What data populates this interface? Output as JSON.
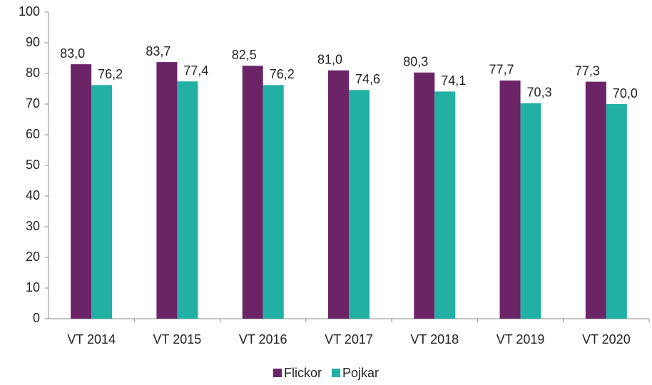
{
  "chart_data": {
    "type": "bar",
    "categories": [
      "VT 2014",
      "VT 2015",
      "VT 2016",
      "VT 2017",
      "VT 2018",
      "VT 2019",
      "VT 2020"
    ],
    "series": [
      {
        "name": "Flickor",
        "color": "#6b2567",
        "values": [
          83.0,
          83.7,
          82.5,
          81.0,
          80.3,
          77.7,
          77.3
        ],
        "value_labels": [
          "83,0",
          "83,7",
          "82,5",
          "81,0",
          "80,3",
          "77,7",
          "77,3"
        ]
      },
      {
        "name": "Pojkar",
        "color": "#22b0a5",
        "values": [
          76.2,
          77.4,
          76.2,
          74.6,
          74.1,
          70.3,
          70.0
        ],
        "value_labels": [
          "76,2",
          "77,4",
          "76,2",
          "74,6",
          "74,1",
          "70,3",
          "70,0"
        ]
      }
    ],
    "ylim": [
      0,
      100
    ],
    "yticks": [
      0,
      10,
      20,
      30,
      40,
      50,
      60,
      70,
      80,
      90,
      100
    ],
    "legend": "bottom"
  }
}
